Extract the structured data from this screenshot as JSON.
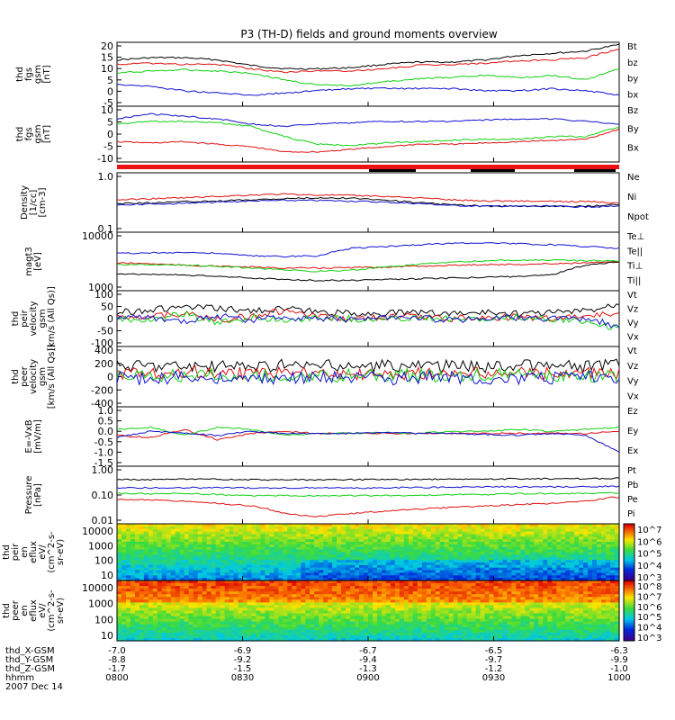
{
  "title": "P3 (TH-D) fields and ground moments overview",
  "footer": {
    "date": "2007 Dec 14",
    "rows": [
      {
        "label": "thd_X-GSM",
        "values": [
          "-7.0",
          "-6.9",
          "-6.7",
          "-6.5",
          "-6.3"
        ]
      },
      {
        "label": "thd_Y-GSM",
        "values": [
          "-8.8",
          "-9.2",
          "-9.4",
          "-9.7",
          "-9.9"
        ]
      },
      {
        "label": "thd_Z-GSM",
        "values": [
          "-1.7",
          "-1.5",
          "-1.3",
          "-1.2",
          "-1.0"
        ]
      },
      {
        "label": "hhmm",
        "values": [
          "0800",
          "0830",
          "0900",
          "0930",
          "1000"
        ]
      }
    ]
  },
  "colors": {
    "black": "#000000",
    "red": "#e01010",
    "green": "#10d010",
    "blue": "#1010d0"
  },
  "chart_data": [
    {
      "type": "line",
      "ylabel": [
        "thd",
        "fgs",
        "gsm",
        "[nT]"
      ],
      "yticks": [
        "20",
        "15",
        "10",
        "5",
        "0",
        "-5"
      ],
      "ylim": [
        -9,
        20
      ],
      "legend": [
        {
          "label": "Bt",
          "color": "#000000"
        },
        {
          "label": "bz",
          "color": "#e01010"
        },
        {
          "label": "by",
          "color": "#10d010"
        },
        {
          "label": "bx",
          "color": "#1010d0"
        }
      ],
      "series": [
        {
          "color": "#000000",
          "values": [
            12,
            13,
            13,
            12,
            9.5,
            8,
            8,
            8.5,
            10,
            11,
            11,
            12,
            14,
            15,
            16,
            19
          ]
        },
        {
          "color": "#e01010",
          "values": [
            10,
            10.5,
            10,
            10,
            8,
            6.5,
            7,
            7,
            8,
            9.5,
            10,
            10.5,
            11.5,
            12,
            13,
            17
          ]
        },
        {
          "color": "#10d010",
          "values": [
            6,
            7,
            7.5,
            7,
            6,
            3,
            0.5,
            0.5,
            2,
            3.5,
            4,
            5,
            4,
            5,
            3,
            8
          ]
        },
        {
          "color": "#1010d0",
          "values": [
            1,
            0,
            -2,
            -3,
            -4,
            -3,
            -2,
            -1,
            -1,
            -1,
            -1,
            -2,
            -2,
            -1,
            -2,
            -4
          ]
        }
      ]
    },
    {
      "type": "line",
      "ylabel": [
        "thd",
        "fgs",
        "gsm",
        "[nT]"
      ],
      "yticks": [
        "10",
        "5",
        "0",
        "-5",
        "-10"
      ],
      "ylim": [
        -11,
        11
      ],
      "legend": [
        {
          "label": "Bz",
          "color": "#e01010"
        },
        {
          "label": "By",
          "color": "#10d010"
        },
        {
          "label": "Bx",
          "color": "#1010d0"
        }
      ],
      "series": [
        {
          "color": "#e01010",
          "values": [
            -3,
            -3.5,
            -3,
            -4,
            -5,
            -7,
            -7,
            -6,
            -5,
            -4,
            -4,
            -3.5,
            -3,
            -2.5,
            -2,
            2
          ]
        },
        {
          "color": "#10d010",
          "values": [
            4,
            5,
            5,
            4.5,
            3,
            -1,
            -4,
            -4.5,
            -3.5,
            -3,
            -2.5,
            -2,
            -2,
            -1,
            -1,
            3
          ]
        },
        {
          "color": "#1010d0",
          "values": [
            6,
            8,
            7,
            6,
            4,
            3,
            4,
            4.5,
            5,
            5,
            5,
            5.5,
            6,
            6,
            5,
            4
          ]
        }
      ]
    },
    {
      "type": "line",
      "ylabel": [
        "Density",
        "[1/cc]",
        "[cm-3]"
      ],
      "yticks": [
        "1.0",
        "0.1"
      ],
      "log": true,
      "ylim": [
        0.08,
        1.4
      ],
      "legend": [
        {
          "label": "Ne",
          "color": "#e01010"
        },
        {
          "label": "Ni",
          "color": "#000000"
        },
        {
          "label": "Npot",
          "color": "#1010d0"
        }
      ],
      "series": [
        {
          "color": "#e01010",
          "values": [
            0.38,
            0.4,
            0.42,
            0.45,
            0.48,
            0.5,
            0.48,
            0.47,
            0.45,
            0.42,
            0.38,
            0.36,
            0.36,
            0.35,
            0.35,
            0.33
          ]
        },
        {
          "color": "#000000",
          "values": [
            0.32,
            0.33,
            0.35,
            0.36,
            0.38,
            0.4,
            0.42,
            0.41,
            0.38,
            0.33,
            0.3,
            0.28,
            0.28,
            0.28,
            0.28,
            0.3
          ]
        },
        {
          "color": "#1010d0",
          "values": [
            0.3,
            0.31,
            0.32,
            0.34,
            0.36,
            0.37,
            0.37,
            0.36,
            0.34,
            0.32,
            0.29,
            0.28,
            0.28,
            0.28,
            0.27,
            0.28
          ]
        }
      ]
    },
    {
      "type": "line",
      "ylabel": [
        "magt3",
        "[eV]"
      ],
      "yticks": [
        "10000",
        "1000"
      ],
      "log": true,
      "ylim": [
        700,
        12000
      ],
      "legend": [
        {
          "label": "Te⊥",
          "color": "#e01010"
        },
        {
          "label": "Te||",
          "color": "#000000"
        },
        {
          "label": "Ti⊥",
          "color": "#1010d0"
        },
        {
          "label": "Ti||",
          "color": "#10d010"
        }
      ],
      "series": [
        {
          "color": "#e01010",
          "values": [
            2700,
            2600,
            2400,
            2300,
            2200,
            2100,
            2100,
            2150,
            2200,
            2300,
            2400,
            2500,
            2500,
            2600,
            2700,
            2800
          ]
        },
        {
          "color": "#000000",
          "values": [
            1600,
            1550,
            1500,
            1400,
            1300,
            1200,
            1150,
            1150,
            1200,
            1250,
            1300,
            1350,
            1400,
            1500,
            2400,
            2900
          ]
        },
        {
          "color": "#1010d0",
          "values": [
            4300,
            4400,
            4500,
            4300,
            3800,
            3700,
            3800,
            5500,
            6000,
            6500,
            7000,
            7200,
            6800,
            6500,
            6000,
            5500
          ]
        },
        {
          "color": "#10d010",
          "values": [
            2500,
            2500,
            2400,
            2300,
            2100,
            1900,
            1800,
            1900,
            2200,
            2500,
            2800,
            3000,
            3100,
            3100,
            3000,
            3000
          ]
        }
      ]
    },
    {
      "type": "line",
      "ylabel": [
        "thd",
        "peir",
        "velocity",
        "gsm",
        "[km/s (All Qs)]"
      ],
      "yticks": [
        "100",
        "50",
        "0",
        "-50",
        "-100"
      ],
      "ylim": [
        -110,
        110
      ],
      "legend": [
        {
          "label": "Vt",
          "color": "#000000"
        },
        {
          "label": "Vz",
          "color": "#e01010"
        },
        {
          "label": "Vy",
          "color": "#10d010"
        },
        {
          "label": "Vx",
          "color": "#1010d0"
        }
      ],
      "series": [
        {
          "color": "#000000",
          "values": [
            25,
            35,
            45,
            40,
            30,
            40,
            25,
            20,
            20,
            25,
            20,
            25,
            20,
            25,
            30,
            60
          ]
        },
        {
          "color": "#e01010",
          "values": [
            5,
            10,
            20,
            -5,
            10,
            30,
            5,
            0,
            5,
            10,
            0,
            5,
            5,
            0,
            10,
            20
          ]
        },
        {
          "color": "#10d010",
          "values": [
            0,
            -10,
            20,
            -20,
            5,
            -5,
            5,
            0,
            -5,
            5,
            0,
            -5,
            5,
            0,
            -10,
            -40
          ]
        },
        {
          "color": "#1010d0",
          "values": [
            0,
            5,
            -10,
            10,
            -5,
            5,
            0,
            -5,
            5,
            0,
            -5,
            0,
            5,
            0,
            0,
            -30
          ]
        }
      ]
    },
    {
      "type": "line",
      "ylabel": [
        "thd",
        "peer",
        "velocity",
        "gsm",
        "[km/s (All Qs)]"
      ],
      "yticks": [
        "400",
        "200",
        "0",
        "-200",
        "-400"
      ],
      "ylim": [
        -430,
        430
      ],
      "legend": [
        {
          "label": "Vt",
          "color": "#000000"
        },
        {
          "label": "Vz",
          "color": "#e01010"
        },
        {
          "label": "Vy",
          "color": "#10d010"
        },
        {
          "label": "Vx",
          "color": "#1010d0"
        }
      ],
      "series": [
        {
          "color": "#000000",
          "values": [
            150,
            160,
            150,
            140,
            150,
            160,
            150,
            140,
            150,
            160,
            150,
            150,
            160,
            150,
            150,
            160
          ]
        },
        {
          "color": "#e01010",
          "values": [
            50,
            40,
            60,
            50,
            40,
            50,
            60,
            50,
            40,
            50,
            50,
            60,
            50,
            40,
            50,
            60
          ]
        },
        {
          "color": "#10d010",
          "values": [
            20,
            30,
            10,
            20,
            30,
            20,
            10,
            20,
            30,
            20,
            10,
            20,
            30,
            20,
            10,
            20
          ]
        },
        {
          "color": "#1010d0",
          "values": [
            -20,
            -30,
            -10,
            -20,
            -30,
            -20,
            -10,
            -20,
            -30,
            -20,
            -10,
            -20,
            -30,
            -20,
            -10,
            -20
          ]
        }
      ]
    },
    {
      "type": "line",
      "ylabel": [
        "E=-VxB",
        "[mV/m]"
      ],
      "yticks": [
        "1.0",
        "0.5",
        "0.0",
        "-0.5",
        "-1.0",
        "-1.5"
      ],
      "ylim": [
        -1.6,
        1.3
      ],
      "legend": [
        {
          "label": "Ez",
          "color": "#e01010"
        },
        {
          "label": "Ey",
          "color": "#10d010"
        },
        {
          "label": "Ex",
          "color": "#1010d0"
        }
      ],
      "series": [
        {
          "color": "#e01010",
          "values": [
            -0.1,
            -0.2,
            0.2,
            -0.3,
            0.0,
            0.1,
            0.0,
            0.0,
            0.0,
            0.0,
            0.0,
            0.0,
            0.0,
            0.0,
            0.0,
            0.1
          ]
        },
        {
          "color": "#10d010",
          "values": [
            0.2,
            0.3,
            -0.1,
            0.3,
            0.2,
            -0.1,
            0.0,
            0.0,
            0.05,
            0.0,
            0.1,
            0.1,
            0.2,
            0.1,
            0.2,
            0.3
          ]
        },
        {
          "color": "#1010d0",
          "values": [
            -0.2,
            0.1,
            0.0,
            -0.1,
            0.1,
            0.0,
            0.0,
            0.0,
            0.05,
            0.0,
            0.0,
            -0.05,
            -0.1,
            0.0,
            -0.1,
            -0.9
          ]
        }
      ]
    },
    {
      "type": "line",
      "ylabel": [
        "Pressure",
        "[nPa]"
      ],
      "yticks": [
        "1.00",
        "0.10",
        "0.01"
      ],
      "log": true,
      "ylim": [
        0.008,
        1.4
      ],
      "legend": [
        {
          "label": "Pt",
          "color": "#000000"
        },
        {
          "label": "Pb",
          "color": "#e01010"
        },
        {
          "label": "Pe",
          "color": "#10d010"
        },
        {
          "label": "Pi",
          "color": "#1010d0"
        }
      ],
      "series": [
        {
          "color": "#000000",
          "values": [
            0.42,
            0.42,
            0.43,
            0.43,
            0.42,
            0.41,
            0.41,
            0.42,
            0.42,
            0.43,
            0.44,
            0.44,
            0.45,
            0.45,
            0.46,
            0.47
          ]
        },
        {
          "color": "#e01010",
          "values": [
            0.07,
            0.07,
            0.06,
            0.05,
            0.04,
            0.02,
            0.015,
            0.02,
            0.025,
            0.03,
            0.035,
            0.04,
            0.045,
            0.05,
            0.06,
            0.09
          ]
        },
        {
          "color": "#10d010",
          "values": [
            0.12,
            0.12,
            0.12,
            0.11,
            0.1,
            0.1,
            0.1,
            0.1,
            0.1,
            0.1,
            0.11,
            0.11,
            0.12,
            0.12,
            0.12,
            0.13
          ]
        },
        {
          "color": "#1010d0",
          "values": [
            0.2,
            0.2,
            0.2,
            0.2,
            0.2,
            0.2,
            0.2,
            0.2,
            0.2,
            0.21,
            0.21,
            0.22,
            0.22,
            0.22,
            0.22,
            0.23
          ]
        }
      ]
    },
    {
      "type": "heatmap",
      "ylabel": [
        "thd",
        "peir",
        "en",
        "eflux",
        "eV/",
        "(cm^2-s-",
        "sr-eV)"
      ],
      "yticks": [
        "10000",
        "1000",
        "100",
        "10"
      ],
      "colorbar": [
        "10^7",
        "10^6",
        "10^5",
        "10^4",
        "10^3"
      ]
    },
    {
      "type": "heatmap",
      "ylabel": [
        "thd",
        "peer",
        "en",
        "eflux",
        "eV/",
        "(cm^2-s-",
        "sr-eV)"
      ],
      "yticks": [
        "10000",
        "1000",
        "100",
        "10"
      ],
      "colorbar": [
        "10^8",
        "10^7",
        "10^6",
        "10^5",
        "10^4",
        "10^3"
      ]
    }
  ]
}
